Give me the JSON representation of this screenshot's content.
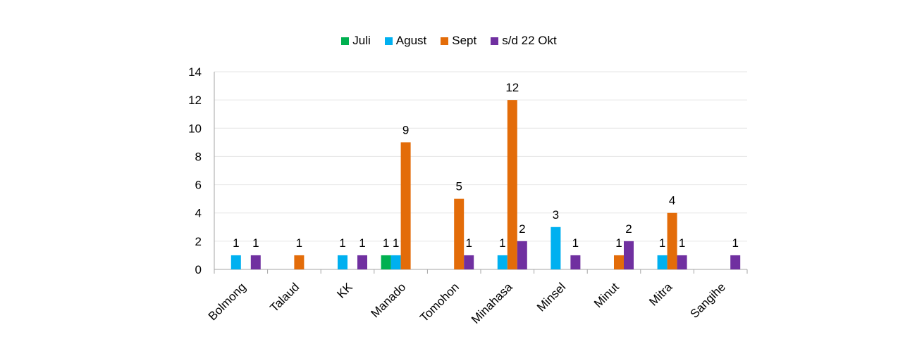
{
  "chart_data": {
    "type": "bar",
    "title": "",
    "xlabel": "",
    "ylabel": "",
    "ylim": [
      0,
      14
    ],
    "yticks": [
      0,
      2,
      4,
      6,
      8,
      10,
      12,
      14
    ],
    "grid": true,
    "legend_position": "top",
    "categories": [
      "Bolmong",
      "Talaud",
      "KK",
      "Manado",
      "Tomohon",
      "Minahasa",
      "Minsel",
      "Minut",
      "Mitra",
      "Sangihe"
    ],
    "series": [
      {
        "name": "Juli",
        "color": "#00b050",
        "values": [
          null,
          null,
          null,
          1,
          null,
          null,
          null,
          null,
          null,
          null
        ]
      },
      {
        "name": "Agust",
        "color": "#00b0f0",
        "values": [
          1,
          null,
          1,
          1,
          null,
          1,
          3,
          null,
          1,
          null
        ]
      },
      {
        "name": "Sept",
        "color": "#e36c09",
        "values": [
          null,
          1,
          null,
          9,
          5,
          12,
          null,
          1,
          4,
          null
        ]
      },
      {
        "name": "s/d 22 Okt",
        "color": "#7030a0",
        "values": [
          1,
          null,
          1,
          null,
          1,
          2,
          1,
          2,
          1,
          1
        ]
      }
    ]
  }
}
